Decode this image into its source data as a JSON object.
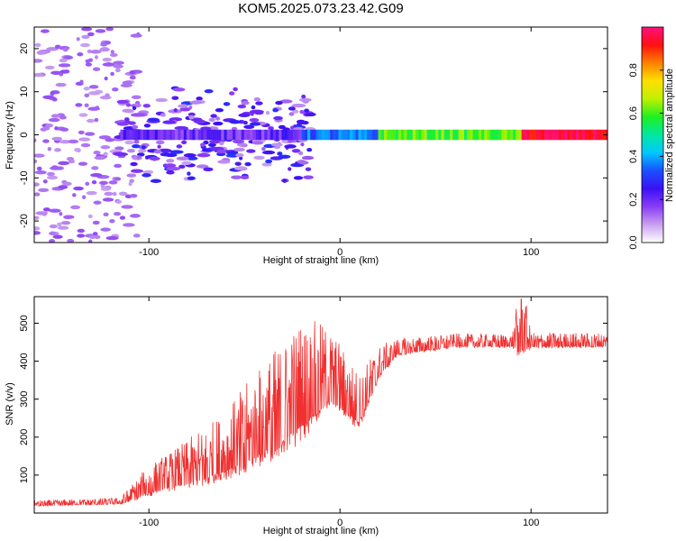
{
  "title": "KOM5.2025.073.23.42.G09",
  "chart_data": [
    {
      "type": "heatmap",
      "xlabel": "Height of straight line (km)",
      "ylabel": "Frequency (Hz)",
      "xlim": [
        -160,
        140
      ],
      "ylim": [
        -25,
        25
      ],
      "xticks": [
        -100,
        0,
        100
      ],
      "yticks": [
        -20,
        -10,
        0,
        10,
        20
      ],
      "colorbar": {
        "label": "Normalized spectral amplitude",
        "range": [
          0,
          1
        ],
        "ticks": [
          "0.0",
          "0.2",
          "0.4",
          "0.6",
          "0.8"
        ],
        "colormap": [
          "#ffffff",
          "#c9a0f0",
          "#8a3cf5",
          "#3a10f5",
          "#1a50ff",
          "#00c8ff",
          "#00e8a0",
          "#20f020",
          "#c0f000",
          "#ffe000",
          "#ff8000",
          "#ff1010",
          "#ff1080"
        ]
      },
      "ridge": {
        "description_free": true,
        "segments": [
          {
            "x_start": -115,
            "x_end": -20,
            "freq": 0,
            "amplitude": 0.2
          },
          {
            "x_start": -20,
            "x_end": 20,
            "freq": 0,
            "amplitude": 0.35
          },
          {
            "x_start": 20,
            "x_end": 95,
            "freq": 0,
            "amplitude": 0.6
          },
          {
            "x_start": 95,
            "x_end": 140,
            "freq": 0,
            "amplitude": 0.95
          }
        ]
      }
    },
    {
      "type": "line",
      "xlabel": "Height of straight line (km)",
      "ylabel": "SNR (v/v)",
      "xlim": [
        -160,
        140
      ],
      "ylim": [
        0,
        570
      ],
      "xticks": [
        -100,
        0,
        100
      ],
      "yticks": [
        100,
        200,
        300,
        400,
        500
      ],
      "color": "#f03030",
      "profile": [
        {
          "x": -160,
          "y": 20,
          "noise": 8
        },
        {
          "x": -115,
          "y": 25,
          "noise": 10
        },
        {
          "x": -100,
          "y": 55,
          "noise": 45
        },
        {
          "x": -80,
          "y": 80,
          "noise": 70
        },
        {
          "x": -60,
          "y": 110,
          "noise": 100
        },
        {
          "x": -40,
          "y": 160,
          "noise": 150
        },
        {
          "x": -20,
          "y": 230,
          "noise": 180
        },
        {
          "x": -5,
          "y": 300,
          "noise": 120
        },
        {
          "x": 10,
          "y": 240,
          "noise": 80
        },
        {
          "x": 20,
          "y": 360,
          "noise": 50
        },
        {
          "x": 30,
          "y": 420,
          "noise": 25
        },
        {
          "x": 60,
          "y": 440,
          "noise": 20
        },
        {
          "x": 90,
          "y": 440,
          "noise": 20
        },
        {
          "x": 95,
          "y": 430,
          "noise": 120
        },
        {
          "x": 100,
          "y": 440,
          "noise": 22
        },
        {
          "x": 140,
          "y": 440,
          "noise": 22
        }
      ]
    }
  ]
}
